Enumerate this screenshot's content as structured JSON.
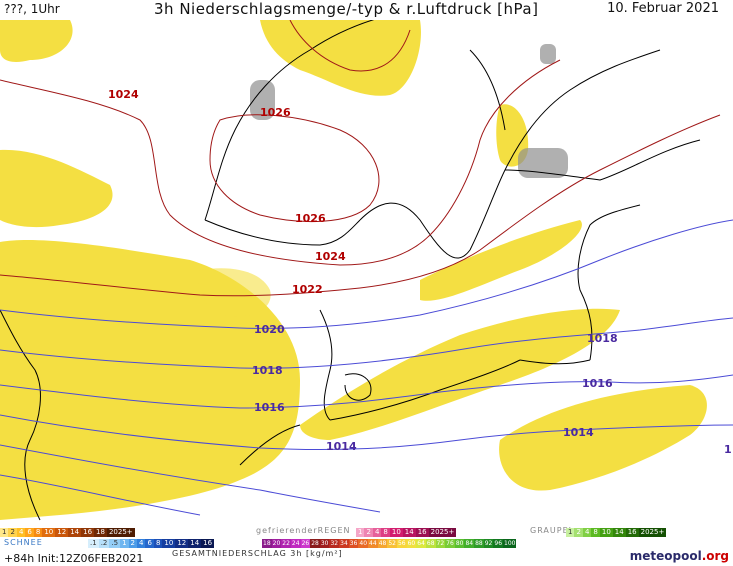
{
  "header": {
    "left": "???, 1Uhr",
    "title": "3h Niederschlagsmenge/-typ & r.Luftdruck [hPa]",
    "date": "10. Februar 2021"
  },
  "isobars": {
    "high_pressure_color": "#a01818",
    "low_pressure_color": "#4b4bd6",
    "labels_high": [
      "1024",
      "1026",
      "1026",
      "1024",
      "1022"
    ],
    "labels_low": [
      "1020",
      "1018",
      "1016",
      "1014",
      "1018",
      "1016",
      "1014",
      "1"
    ]
  },
  "precip_color": "#f3dc2e",
  "legend": {
    "snow_label": "SCHNEE",
    "snow_scale": [
      ".1",
      ".2",
      ".5",
      "1",
      "2",
      "4",
      "6",
      "8",
      "10",
      "12",
      "14",
      "16"
    ],
    "rain_scale": [
      "1",
      "2",
      "4",
      "6",
      "8",
      "10",
      "12",
      "14",
      "16",
      "18",
      "2025+"
    ],
    "freezing_rain_label": "gefrierenderREGEN",
    "freezing_rain_scale": [
      "1",
      "2",
      "4",
      "8",
      "10",
      "14",
      "16",
      "2025+"
    ],
    "graupel_label": "GRAUPEL",
    "graupel_scale": [
      "1",
      "2",
      "4",
      "8",
      "10",
      "14",
      "16",
      "2025+"
    ],
    "total_scale": [
      "18",
      "20",
      "22",
      "24",
      "26",
      "28",
      "30",
      "32",
      "34",
      "36",
      "40",
      "44",
      "48",
      "52",
      "56",
      "60",
      "64",
      "68",
      "72",
      "76",
      "80",
      "84",
      "88",
      "92",
      "96",
      "100"
    ],
    "total_caption": "GESAMTNIEDERSCHLAG 3h [kg/m²]"
  },
  "footer": {
    "run": "+84h  Init:12Z06FEB2021",
    "brand_main": "meteopool",
    "brand_tld": ".org"
  }
}
